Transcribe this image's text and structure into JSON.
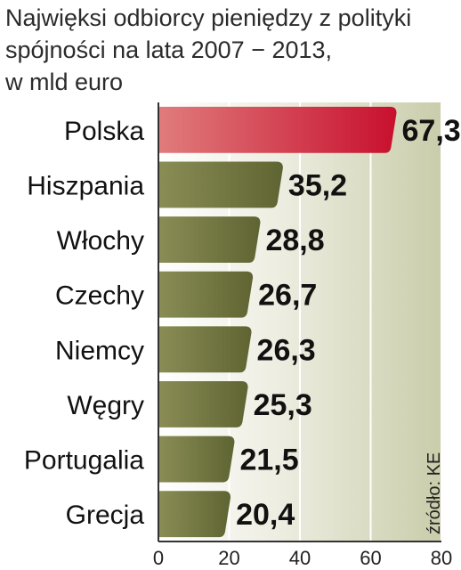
{
  "title_lines": [
    "Najwięksi odbiorcy pieniędzy z polityki",
    "spójności na lata 2007 − 2013,",
    "w mld euro"
  ],
  "source": "źródło: KE",
  "colors": {
    "highlight_bar": "#c8283c",
    "highlight_value": "#c0143c",
    "bar": "#74783e",
    "panel": "#d9dcc5",
    "axis": "#333333"
  },
  "chart_data": {
    "type": "bar",
    "orientation": "horizontal",
    "categories": [
      "Polska",
      "Hiszpania",
      "Włochy",
      "Czechy",
      "Niemcy",
      "Węgry",
      "Portugalia",
      "Grecja"
    ],
    "values": [
      67.3,
      35.2,
      28.8,
      26.7,
      26.3,
      25.3,
      21.5,
      20.4
    ],
    "value_labels": [
      "67,3",
      "35,2",
      "28,8",
      "26,7",
      "26,3",
      "25,3",
      "21,5",
      "20,4"
    ],
    "highlight": "Polska",
    "xlim": [
      0,
      80
    ],
    "x_ticks": [
      "0",
      "20",
      "40",
      "60",
      "80"
    ],
    "grid": true
  }
}
